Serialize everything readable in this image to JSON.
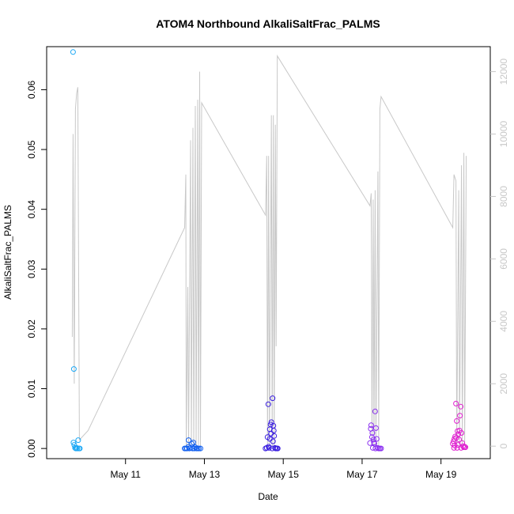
{
  "chart_data": {
    "type": "scatter",
    "title": "ATOM4 Northbound AlkaliSaltFrac_PALMS",
    "xlabel": "Date",
    "ylabel": "AlkaliSaltFrac_PALMS",
    "x_ticks": [
      {
        "day": 11,
        "label": "May 11"
      },
      {
        "day": 13,
        "label": "May 13"
      },
      {
        "day": 15,
        "label": "May 15"
      },
      {
        "day": 17,
        "label": "May 17"
      },
      {
        "day": 19,
        "label": "May 19"
      }
    ],
    "xlim_days": [
      9.0,
      20.25
    ],
    "ylim": [
      -0.0017,
      0.0672
    ],
    "y_ticks": [
      0.0,
      0.01,
      0.02,
      0.03,
      0.04,
      0.05,
      0.06
    ],
    "y_tick_labels": [
      "0.00",
      "0.01",
      "0.02",
      "0.03",
      "0.04",
      "0.05",
      "0.06"
    ],
    "y2_label": "",
    "y2lim": [
      -400,
      12800
    ],
    "y2_ticks": [
      0,
      2000,
      4000,
      6000,
      8000,
      10000,
      12000
    ],
    "y2_tick_labels": [
      "0",
      "2000",
      "4000",
      "6000",
      "8000",
      "10000",
      "12000"
    ],
    "y2_color": "#c8c8c8",
    "altitude_line_color": "#c8c8c8",
    "altitude_series": [
      [
        9.65,
        3500
      ],
      [
        9.67,
        10000
      ],
      [
        9.7,
        2000
      ],
      [
        9.73,
        10800
      ],
      [
        9.76,
        11300
      ],
      [
        9.79,
        11500
      ],
      [
        9.83,
        200
      ],
      [
        10.05,
        500
      ],
      [
        12.5,
        7000
      ],
      [
        12.53,
        8700
      ],
      [
        12.54,
        0
      ],
      [
        12.58,
        5100
      ],
      [
        12.6,
        0
      ],
      [
        12.65,
        9800
      ],
      [
        12.67,
        0
      ],
      [
        12.71,
        10200
      ],
      [
        12.73,
        0
      ],
      [
        12.77,
        10900
      ],
      [
        12.79,
        0
      ],
      [
        12.83,
        11100
      ],
      [
        12.85,
        0
      ],
      [
        12.88,
        12000
      ],
      [
        12.9,
        0
      ],
      [
        12.93,
        11000
      ],
      [
        14.55,
        7400
      ],
      [
        14.58,
        9300
      ],
      [
        14.6,
        0
      ],
      [
        14.63,
        9300
      ],
      [
        14.65,
        0
      ],
      [
        14.7,
        10600
      ],
      [
        14.72,
        0
      ],
      [
        14.75,
        10600
      ],
      [
        14.77,
        0
      ],
      [
        14.8,
        10300
      ],
      [
        14.82,
        3200
      ],
      [
        14.85,
        12500
      ],
      [
        17.2,
        7700
      ],
      [
        17.23,
        8100
      ],
      [
        17.25,
        0
      ],
      [
        17.28,
        7900
      ],
      [
        17.3,
        0
      ],
      [
        17.33,
        8200
      ],
      [
        17.35,
        0
      ],
      [
        17.4,
        8800
      ],
      [
        17.42,
        0
      ],
      [
        17.45,
        10800
      ],
      [
        17.48,
        11200
      ],
      [
        19.3,
        7000
      ],
      [
        19.33,
        8700
      ],
      [
        19.38,
        8500
      ],
      [
        19.4,
        0
      ],
      [
        19.45,
        8200
      ],
      [
        19.47,
        0
      ],
      [
        19.52,
        9000
      ],
      [
        19.54,
        0
      ],
      [
        19.58,
        9400
      ],
      [
        19.6,
        0
      ],
      [
        19.64,
        9300
      ]
    ],
    "series": [
      {
        "color": "#1ca8f5",
        "points": [
          [
            9.67,
            0.0663
          ],
          [
            9.69,
            0.0133
          ],
          [
            9.68,
            0.001
          ],
          [
            9.7,
            0.0006
          ],
          [
            9.72,
            0.0001
          ],
          [
            9.74,
            0.0
          ],
          [
            9.76,
            0.0001
          ],
          [
            9.78,
            0.0
          ],
          [
            9.8,
            0.0014
          ],
          [
            9.82,
            0.0
          ],
          [
            9.84,
            0.0
          ]
        ]
      },
      {
        "color": "#1260f0",
        "points": [
          [
            12.5,
            0.0
          ],
          [
            12.53,
            0.0
          ],
          [
            12.56,
            0.0
          ],
          [
            12.6,
            0.0003
          ],
          [
            12.62,
            0.0
          ],
          [
            12.65,
            0.0001
          ],
          [
            12.68,
            0.0008
          ],
          [
            12.7,
            0.0
          ],
          [
            12.72,
            0.001
          ],
          [
            12.74,
            0.0
          ],
          [
            12.77,
            0.0002
          ],
          [
            12.8,
            0.0
          ],
          [
            12.83,
            0.0
          ],
          [
            12.86,
            0.0
          ],
          [
            12.9,
            0.0
          ],
          [
            12.6,
            0.0014
          ]
        ]
      },
      {
        "color": "#3a1ee0",
        "points": [
          [
            14.55,
            0.0
          ],
          [
            14.58,
            0.0001
          ],
          [
            14.6,
            0.0019
          ],
          [
            14.62,
            0.0074
          ],
          [
            14.64,
            0.0001
          ],
          [
            14.66,
            0.0032
          ],
          [
            14.68,
            0.004
          ],
          [
            14.7,
            0.0044
          ],
          [
            14.72,
            0.0
          ],
          [
            14.73,
            0.0084
          ],
          [
            14.74,
            0.0012
          ],
          [
            14.75,
            0.0038
          ],
          [
            14.77,
            0.0021
          ],
          [
            14.79,
            0.0001
          ],
          [
            14.81,
            0.0
          ],
          [
            14.84,
            0.0
          ],
          [
            14.86,
            0.0
          ],
          [
            14.66,
            0.0016
          ],
          [
            14.69,
            0.0025
          ],
          [
            14.76,
            0.003
          ],
          [
            14.63,
            0.0003
          ]
        ]
      },
      {
        "color": "#8a2ef0",
        "points": [
          [
            17.2,
            0.0009
          ],
          [
            17.22,
            0.0033
          ],
          [
            17.23,
            0.0039
          ],
          [
            17.25,
            0.0019
          ],
          [
            17.27,
            0.0001
          ],
          [
            17.29,
            0.0015
          ],
          [
            17.31,
            0.0008
          ],
          [
            17.33,
            0.0062
          ],
          [
            17.35,
            0.0034
          ],
          [
            17.37,
            0.0016
          ],
          [
            17.39,
            0.0001
          ],
          [
            17.42,
            0.0
          ],
          [
            17.45,
            0.0
          ],
          [
            17.48,
            0.0
          ],
          [
            17.26,
            0.0026
          ],
          [
            17.3,
            0.001
          ],
          [
            17.34,
            0.0
          ]
        ]
      },
      {
        "color": "#e020d0",
        "points": [
          [
            19.3,
            0.0008
          ],
          [
            19.32,
            0.0012
          ],
          [
            19.34,
            0.0016
          ],
          [
            19.36,
            0.002
          ],
          [
            19.38,
            0.0075
          ],
          [
            19.4,
            0.0046
          ],
          [
            19.42,
            0.0029
          ],
          [
            19.44,
            0.0024
          ],
          [
            19.46,
            0.0015
          ],
          [
            19.48,
            0.0055
          ],
          [
            19.5,
            0.007
          ],
          [
            19.52,
            0.0026
          ],
          [
            19.54,
            0.0009
          ],
          [
            19.56,
            0.0004
          ],
          [
            19.58,
            0.0002
          ],
          [
            19.6,
            0.0003
          ],
          [
            19.62,
            0.0002
          ],
          [
            19.35,
            0.0005
          ],
          [
            19.39,
            0.0018
          ],
          [
            19.43,
            0.0006
          ],
          [
            19.47,
            0.003
          ],
          [
            19.51,
            0.0001
          ],
          [
            19.33,
            0.0001
          ],
          [
            19.41,
            0.0001
          ]
        ]
      }
    ]
  }
}
